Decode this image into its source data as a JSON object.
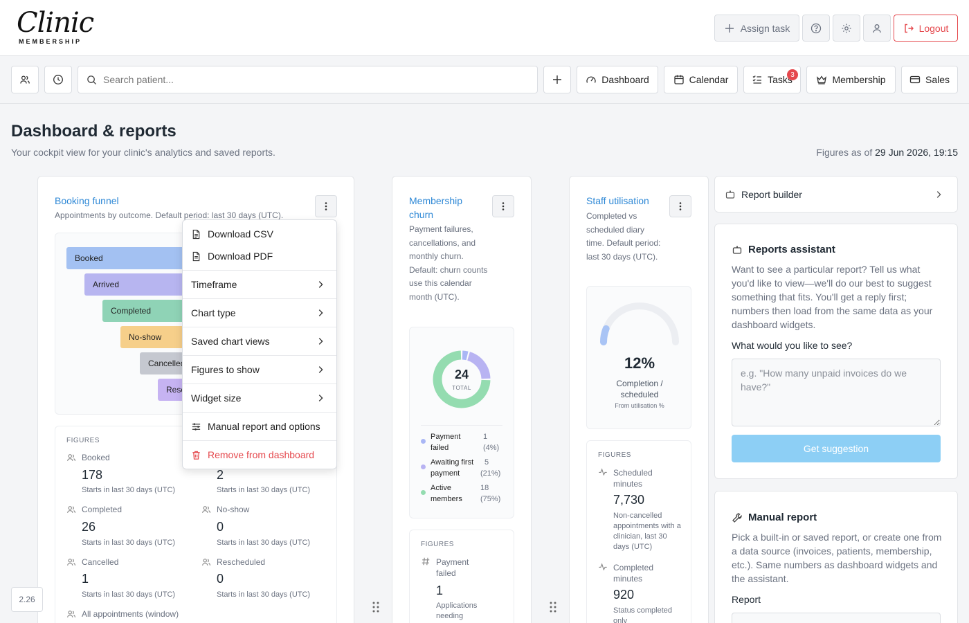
{
  "brand": {
    "name": "Clinic",
    "tagline": "MEMBERSHIP"
  },
  "header": {
    "assign_task": "Assign task",
    "logout": "Logout"
  },
  "nav": {
    "search_placeholder": "Search patient...",
    "dashboard": "Dashboard",
    "calendar": "Calendar",
    "tasks": "Tasks",
    "tasks_badge": "3",
    "membership": "Membership",
    "sales": "Sales"
  },
  "page": {
    "title": "Dashboard & reports",
    "subtitle": "Your cockpit view for your clinic's analytics and saved reports.",
    "figures_as_of_label": "Figures as of",
    "figures_as_of_value": "29 Jun 2026, 19:15"
  },
  "booking_funnel": {
    "title": "Booking funnel",
    "description": "Appointments by outcome. Default period: last 30 days (UTC).",
    "bars": [
      {
        "label": "Booked",
        "color": "#a3c1f2"
      },
      {
        "label": "Arrived",
        "color": "#b7b5f0"
      },
      {
        "label": "Completed",
        "color": "#8fd3b6"
      },
      {
        "label": "No-show",
        "color": "#f6cf8a"
      },
      {
        "label": "Cancelled",
        "color": "#c5c8d0"
      },
      {
        "label": "Rescheduled",
        "color": "#c6b3f2"
      }
    ],
    "figures_title": "FIGURES",
    "figures": [
      {
        "label": "Booked",
        "value": "178",
        "note": "Starts in last 30 days (UTC)"
      },
      {
        "label": "Arrived",
        "value": "2",
        "note": "Starts in last 30 days (UTC)"
      },
      {
        "label": "Completed",
        "value": "26",
        "note": "Starts in last 30 days (UTC)"
      },
      {
        "label": "No-show",
        "value": "0",
        "note": "Starts in last 30 days (UTC)"
      },
      {
        "label": "Cancelled",
        "value": "1",
        "note": "Starts in last 30 days (UTC)"
      },
      {
        "label": "Rescheduled",
        "value": "0",
        "note": "Starts in last 30 days (UTC)"
      }
    ],
    "all_appointments": "All appointments (window)"
  },
  "menu": {
    "items": [
      {
        "label": "Download CSV",
        "icon": "file-csv-icon"
      },
      {
        "label": "Download PDF",
        "icon": "file-pdf-icon"
      },
      {
        "label": "Timeframe"
      },
      {
        "label": "Chart type"
      },
      {
        "label": "Saved chart views"
      },
      {
        "label": "Figures to show"
      },
      {
        "label": "Widget size"
      },
      {
        "label": "Manual report and options",
        "icon": "sliders-icon"
      },
      {
        "label": "Remove from dashboard",
        "icon": "trash-icon"
      }
    ]
  },
  "membership_churn": {
    "title": "Membership churn",
    "description": "Payment failures, cancellations, and monthly churn. Default: churn counts use this calendar month (UTC).",
    "total": "24",
    "total_label": "TOTAL",
    "legend": [
      {
        "label": "Payment failed",
        "value": "1",
        "pct": "(4%)",
        "count": 1,
        "color": "#a9b6f5"
      },
      {
        "label": "Awaiting first payment",
        "value": "5",
        "pct": "(21%)",
        "count": 5,
        "color": "#b8b3f2"
      },
      {
        "label": "Active members",
        "value": "18",
        "pct": "(75%)",
        "count": 18,
        "color": "#94dcb0"
      }
    ],
    "figures_title": "FIGURES",
    "figure_label": "Payment failed",
    "figure_value": "1",
    "figure_note": "Applications needing"
  },
  "staff_utilisation": {
    "title": "Staff utilisation",
    "description": "Completed vs scheduled diary time. Default period: last 30 days (UTC).",
    "gauge_value": "12%",
    "gauge_fraction": 0.12,
    "gauge_label": "Completion / scheduled",
    "gauge_note": "From utilisation %",
    "figures_title": "FIGURES",
    "f1_label": "Scheduled minutes",
    "f1_value": "7,730",
    "f1_note": "Non-cancelled appointments with a clinician, last 30 days (UTC)",
    "f2_label": "Completed minutes",
    "f2_value": "920",
    "f2_note": "Status completed only"
  },
  "right": {
    "report_builder": "Report builder",
    "assistant_title": "Reports assistant",
    "assistant_text": "Want to see a particular report? Tell us what you'd like to view—we'll do our best to suggest something that fits. You'll get a reply first; numbers then load from the same data as your dashboard widgets.",
    "assistant_question": "What would you like to see?",
    "assistant_placeholder": "e.g. \"How many unpaid invoices do we have?\"",
    "get_suggestion": "Get suggestion",
    "manual_title": "Manual report",
    "manual_text": "Pick a built-in or saved report, or create one from a data source (invoices, patients, membership, etc.). Same numbers as dashboard widgets and the assistant.",
    "report_label": "Report"
  },
  "zoom": "2.26"
}
